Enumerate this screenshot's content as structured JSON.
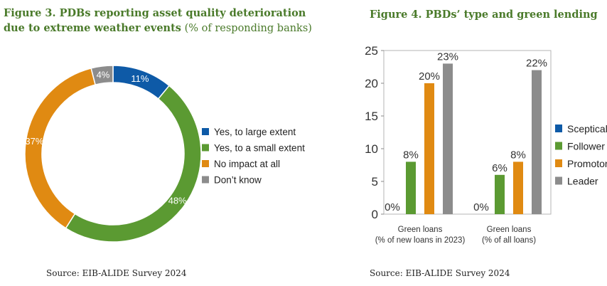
{
  "figure3": {
    "title_bold": "Figure 3. PDBs reporting asset quality deterioration due to extreme weather events",
    "title_normal": " (% of responding banks)",
    "source": "Source: EIB-ALIDE Survey 2024"
  },
  "figure4": {
    "title": "Figure 4. PBDs’ type and green lending",
    "source": "Source: EIB-ALIDE Survey 2024"
  },
  "colors": {
    "blue": "#0e5aa7",
    "green": "#5b9a32",
    "orange": "#e08a12",
    "gray": "#8c8c8c",
    "title_green": "#4a7a2a"
  },
  "chart_data": [
    {
      "type": "pie",
      "variant": "donut",
      "slices": [
        {
          "label": "Yes, to large extent",
          "value": 11,
          "value_label": "11%",
          "color": "#0e5aa7"
        },
        {
          "label": "Yes, to a small extent",
          "value": 48,
          "value_label": "48%",
          "color": "#5b9a32"
        },
        {
          "label": "No impact at all",
          "value": 37,
          "value_label": "37%",
          "color": "#e08a12"
        },
        {
          "label": "Don’t know",
          "value": 4,
          "value_label": "4%",
          "color": "#8c8c8c"
        }
      ],
      "legend_position": "right"
    },
    {
      "type": "bar",
      "categories": [
        "Green loans\n(% of new loans in 2023)",
        "Green loans\n(% of all loans)"
      ],
      "series": [
        {
          "name": "Sceptical",
          "color": "#0e5aa7",
          "values": [
            0,
            0
          ],
          "labels": [
            "0%",
            "0%"
          ]
        },
        {
          "name": "Follower",
          "color": "#5b9a32",
          "values": [
            8,
            6
          ],
          "labels": [
            "8%",
            "6%"
          ]
        },
        {
          "name": "Promotor",
          "color": "#e08a12",
          "values": [
            20,
            8
          ],
          "labels": [
            "20%",
            "8%"
          ]
        },
        {
          "name": "Leader",
          "color": "#8c8c8c",
          "values": [
            23,
            22
          ],
          "labels": [
            "23%",
            "22%"
          ]
        }
      ],
      "yticks": [
        "0",
        "5",
        "10",
        "15",
        "20",
        "25"
      ],
      "ylim": [
        0,
        25
      ],
      "grid": false,
      "legend_position": "right"
    }
  ]
}
